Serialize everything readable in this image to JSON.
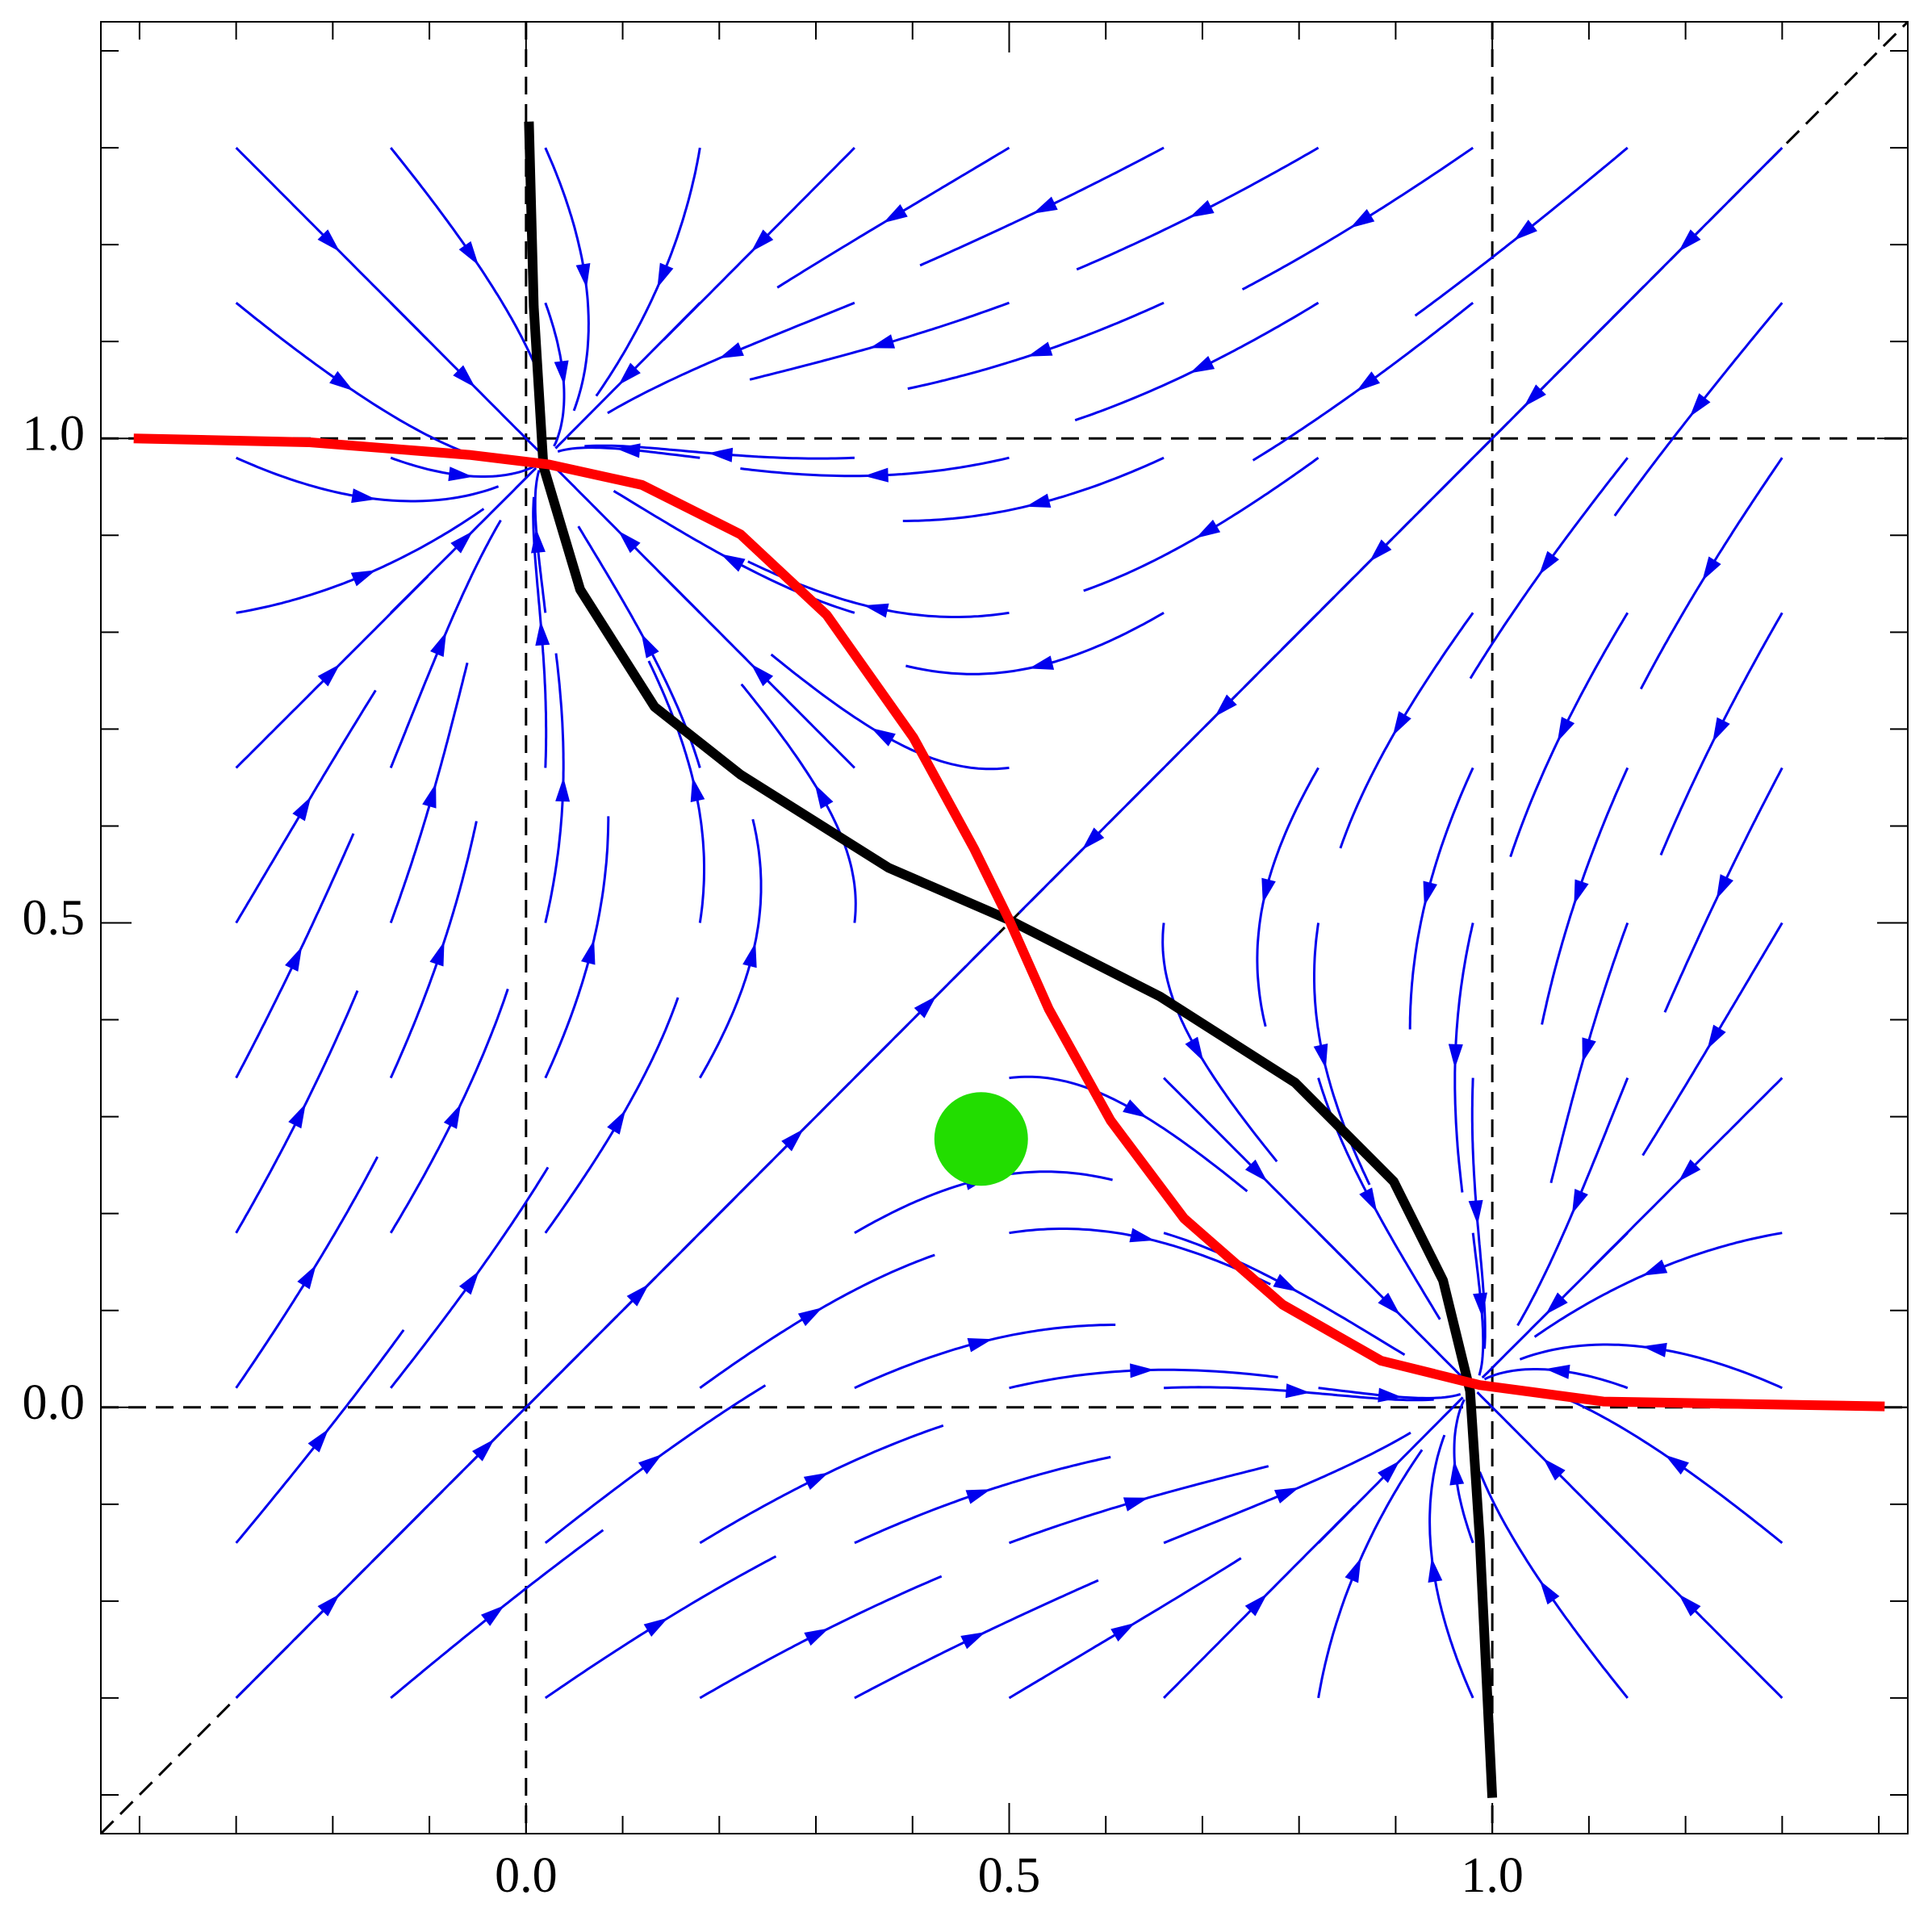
{
  "chart_data": {
    "type": "streamplot",
    "xlim": [
      -0.44,
      1.43
    ],
    "ylim": [
      -0.44,
      1.43
    ],
    "xticks": [
      {
        "value": 0,
        "label": "0.0"
      },
      {
        "value": 0.5,
        "label": "0.5"
      },
      {
        "value": 1,
        "label": "1.0"
      }
    ],
    "yticks": [
      {
        "value": 0,
        "label": "0.0"
      },
      {
        "value": 0.5,
        "label": "0.5"
      },
      {
        "value": 1,
        "label": "1.0"
      }
    ],
    "minor_ticks": [
      -0.4,
      -0.3,
      -0.2,
      -0.1,
      0,
      0.1,
      0.2,
      0.3,
      0.4,
      0.5,
      0.6,
      0.7,
      0.8,
      0.9,
      1,
      1.1,
      1.2,
      1.3,
      1.4
    ],
    "reference_lines": {
      "x": [
        0,
        1
      ],
      "y": [
        0,
        1
      ],
      "diagonal": true
    },
    "stream_color": "#0000ee",
    "series": [
      {
        "color": "#000000",
        "x": [
          0.003,
          0.008,
          0.018,
          0.056,
          0.133,
          0.222,
          0.375,
          0.5,
          0.656,
          0.796,
          0.898,
          0.949,
          0.977,
          0.987,
          1.0
        ],
        "y": [
          1.327,
          1.136,
          0.971,
          0.844,
          0.723,
          0.653,
          0.557,
          0.503,
          0.424,
          0.335,
          0.233,
          0.131,
          0.017,
          -0.136,
          -0.403
        ]
      },
      {
        "color": "#ff0000",
        "x": [
          -0.406,
          -0.224,
          -0.059,
          0.024,
          0.12,
          0.222,
          0.311,
          0.401,
          0.464,
          0.5,
          0.541,
          0.605,
          0.681,
          0.783,
          0.885,
          0.987,
          1.115,
          1.406
        ],
        "y": [
          1.0,
          0.996,
          0.983,
          0.973,
          0.952,
          0.901,
          0.818,
          0.691,
          0.576,
          0.503,
          0.411,
          0.296,
          0.195,
          0.106,
          0.048,
          0.023,
          0.006,
          0.001
        ]
      }
    ],
    "points": [
      {
        "x": 0.471,
        "y": 0.277,
        "color": "#22dd00"
      }
    ]
  }
}
